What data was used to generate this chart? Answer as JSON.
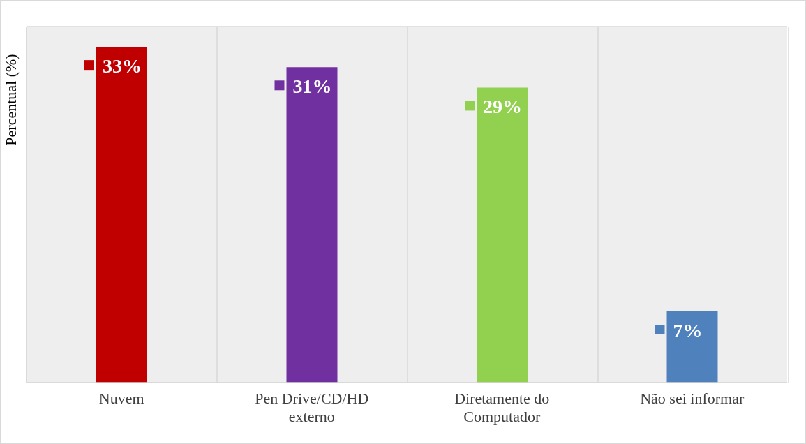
{
  "chart_data": {
    "type": "bar",
    "ylabel": "Percentual (%)",
    "categories": [
      "Nuvem",
      "Pen Drive/CD/HD externo",
      "Diretamente do Computador",
      "Não sei informar"
    ],
    "values": [
      33,
      31,
      29,
      7
    ],
    "colors": [
      "#c00000",
      "#7030a0",
      "#92d050",
      "#4f81bd"
    ],
    "value_labels": [
      "33%",
      "31%",
      "29%",
      "7%"
    ],
    "tick_labels": "x",
    "grid": true
  }
}
